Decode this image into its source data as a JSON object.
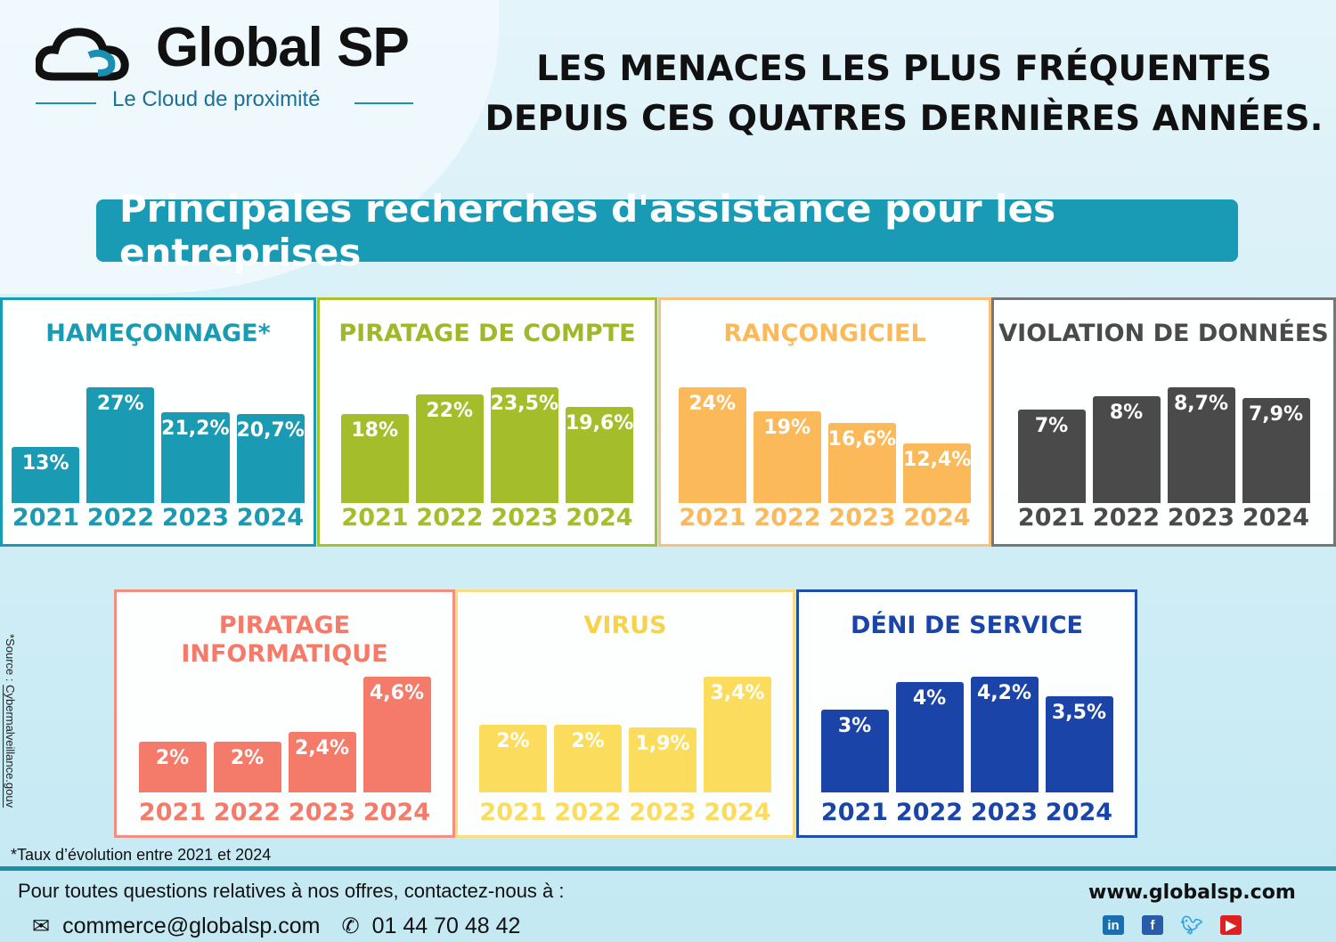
{
  "logo": {
    "name": "Global SP",
    "tagline": "Le Cloud de proximité"
  },
  "headline": {
    "line1": "LES MENACES LES PLUS FRÉQUENTES",
    "line2": "DEPUIS CES QUATRES DERNIÈRES ANNÉES."
  },
  "banner": "Principales recherches d'assistance pour les entreprises",
  "chart_data": [
    {
      "type": "bar",
      "title": "HAMEÇONNAGE*",
      "categories": [
        "2021",
        "2022",
        "2023",
        "2024"
      ],
      "values": [
        13,
        27,
        21.2,
        20.7
      ],
      "labels": [
        "13%",
        "27%",
        "21,2%",
        "20,7%"
      ],
      "color": "#1b9ab3"
    },
    {
      "type": "bar",
      "title": "PIRATAGE DE COMPTE",
      "categories": [
        "2021",
        "2022",
        "2023",
        "2024"
      ],
      "values": [
        18,
        22,
        23.5,
        19.6
      ],
      "labels": [
        "18%",
        "22%",
        "23,5%",
        "19,6%"
      ],
      "color": "#a3bd2b"
    },
    {
      "type": "bar",
      "title": "RANÇONGICIEL",
      "categories": [
        "2021",
        "2022",
        "2023",
        "2024"
      ],
      "values": [
        24,
        19,
        16.6,
        12.4
      ],
      "labels": [
        "24%",
        "19%",
        "16,6%",
        "12,4%"
      ],
      "color": "#fbb95a"
    },
    {
      "type": "bar",
      "title": "VIOLATION DE DONNÉES",
      "categories": [
        "2021",
        "2022",
        "2023",
        "2024"
      ],
      "values": [
        7,
        8,
        8.7,
        7.9
      ],
      "labels": [
        "7%",
        "8%",
        "8,7%",
        "7,9%"
      ],
      "color": "#4a4a4a"
    },
    {
      "type": "bar",
      "title": "PIRATAGE INFORMATIQUE",
      "categories": [
        "2021",
        "2022",
        "2023",
        "2024"
      ],
      "values": [
        2,
        2,
        2.4,
        4.6
      ],
      "labels": [
        "2%",
        "2%",
        "2,4%",
        "4,6%"
      ],
      "color": "#f47a6a"
    },
    {
      "type": "bar",
      "title": "VIRUS",
      "categories": [
        "2021",
        "2022",
        "2023",
        "2024"
      ],
      "values": [
        2,
        2,
        1.9,
        3.4
      ],
      "labels": [
        "2%",
        "2%",
        "1,9%",
        "3,4%"
      ],
      "color": "#fbdc5c"
    },
    {
      "type": "bar",
      "title": "DÉNI DE SERVICE",
      "categories": [
        "2021",
        "2022",
        "2023",
        "2024"
      ],
      "values": [
        3,
        4,
        4.2,
        3.5
      ],
      "labels": [
        "3%",
        "4%",
        "4,2%",
        "3,5%"
      ],
      "color": "#1b44a8"
    }
  ],
  "note": "*Taux d’évolution entre 2021 et 2024",
  "source": {
    "prefix": "*Source : ",
    "link": "Cybermalveillance.gouv"
  },
  "footer": {
    "contact": "Pour toutes questions relatives à nos offres, contactez-nous à :",
    "email": "commerce@globalsp.com",
    "phone": "01 44 70 48 42",
    "website": "www.globalsp.com",
    "social": [
      "linkedin",
      "facebook",
      "twitter",
      "youtube"
    ]
  }
}
